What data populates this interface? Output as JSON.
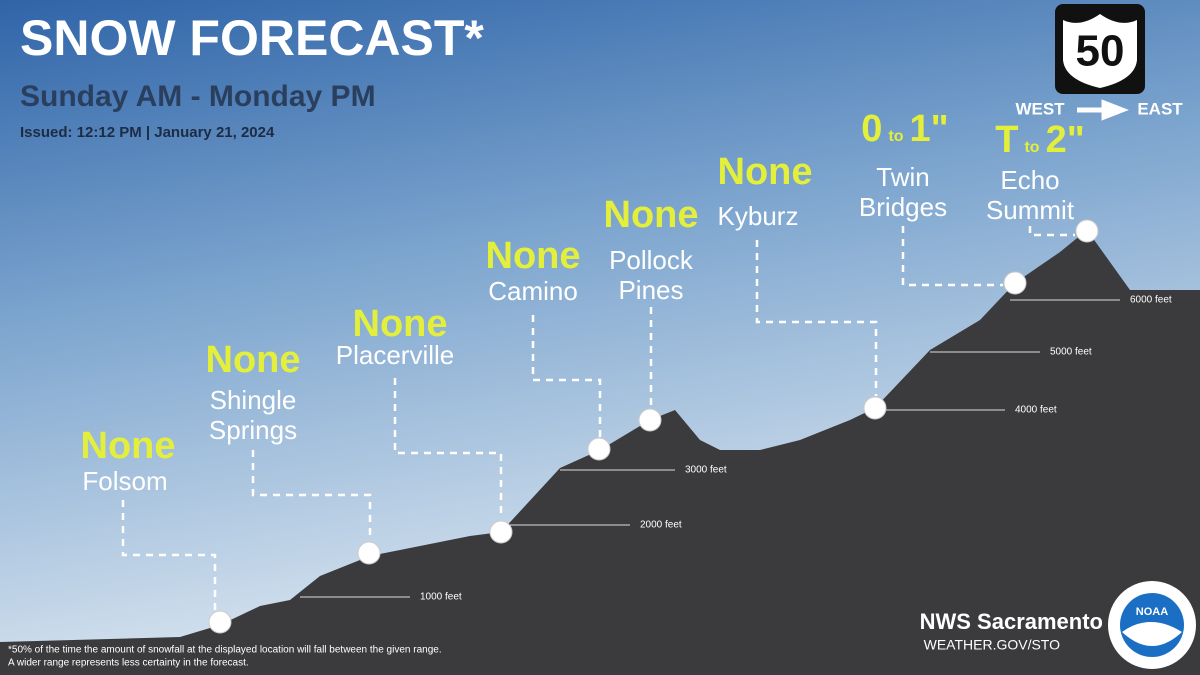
{
  "header": {
    "title": "SNOW FORECAST*",
    "subtitle": "Sunday AM - Monday PM",
    "issued": "Issued: 12:12 PM | January 21, 2024"
  },
  "route": {
    "number": "50",
    "from": "WEST",
    "to": "EAST"
  },
  "locations": [
    {
      "name": [
        "Folsom"
      ],
      "forecast": [
        "None"
      ]
    },
    {
      "name": [
        "Shingle",
        "Springs"
      ],
      "forecast": [
        "None"
      ]
    },
    {
      "name": [
        "Placerville"
      ],
      "forecast": [
        "None"
      ]
    },
    {
      "name": [
        "Camino"
      ],
      "forecast": [
        "None"
      ]
    },
    {
      "name": [
        "Pollock",
        "Pines"
      ],
      "forecast": [
        "None"
      ]
    },
    {
      "name": [
        "Kyburz"
      ],
      "forecast": [
        "None"
      ]
    },
    {
      "name": [
        "Twin",
        "Bridges"
      ],
      "forecast": [
        "0",
        "to",
        "1\""
      ]
    },
    {
      "name": [
        "Echo",
        "Summit"
      ],
      "forecast": [
        "T",
        "to",
        "2\""
      ]
    }
  ],
  "elevations": [
    "1000 feet",
    "2000 feet",
    "3000 feet",
    "4000 feet",
    "5000 feet",
    "6000 feet"
  ],
  "footnote": [
    "*50% of the time the amount of snowfall at the displayed location will fall between the given range.",
    "A wider range represents less certainty in the forecast."
  ],
  "footer": {
    "office": "NWS Sacramento",
    "url": "WEATHER.GOV/STO",
    "logo": "NOAA"
  }
}
